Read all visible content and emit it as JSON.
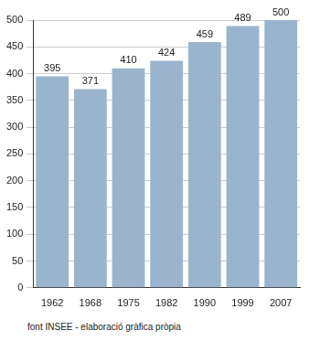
{
  "chart_data": {
    "type": "bar",
    "categories": [
      "1962",
      "1968",
      "1975",
      "1982",
      "1990",
      "1999",
      "2007"
    ],
    "values": [
      395,
      371,
      410,
      424,
      459,
      489,
      500
    ],
    "color": "#9ab4cd",
    "ylim": [
      0,
      500
    ],
    "yticks": [
      0,
      50,
      100,
      150,
      200,
      250,
      300,
      350,
      400,
      450,
      500
    ],
    "grid": true,
    "data_labels": true,
    "annotations": [
      "font INSEE - elaboració gràfica pròpia"
    ]
  }
}
